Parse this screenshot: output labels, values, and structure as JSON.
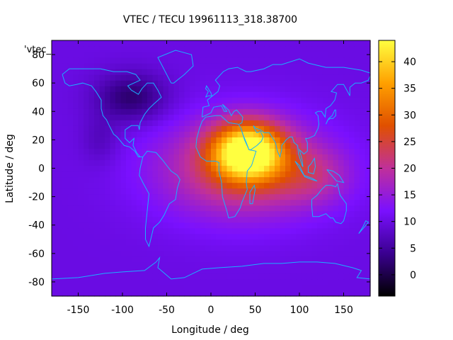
{
  "chart_data": {
    "type": "heatmap",
    "title": "VTEC / TECU 19961113_318.38700",
    "xlabel": "Longitude / deg",
    "ylabel": "Latitude / deg",
    "xlim": [
      -180,
      180
    ],
    "ylim": [
      -90,
      90
    ],
    "x_ticks": [
      -150,
      -100,
      -50,
      0,
      50,
      100,
      150
    ],
    "y_ticks": [
      -80,
      -60,
      -40,
      -20,
      0,
      20,
      40,
      60,
      80
    ],
    "colorbar": {
      "range": [
        -4,
        44
      ],
      "ticks": [
        0,
        5,
        10,
        15,
        20,
        25,
        30,
        35,
        40
      ],
      "palette": [
        "#000000",
        "#3a0090",
        "#7a10ff",
        "#c0309a",
        "#e05000",
        "#ffa000",
        "#ffff40"
      ]
    },
    "legend_key": "'vtec_",
    "background_level": 10,
    "features": [
      {
        "lon": 42,
        "lat": 12,
        "amplitude": 32,
        "sigma_lon": 28,
        "sigma_lat": 14
      },
      {
        "lon": 35,
        "lat": 0,
        "amplitude": 14,
        "sigma_lon": 65,
        "sigma_lat": 24
      },
      {
        "lon": 115,
        "lat": -5,
        "amplitude": 6,
        "sigma_lon": 30,
        "sigma_lat": 14
      },
      {
        "lon": -90,
        "lat": 50,
        "amplitude": -8,
        "sigma_lon": 28,
        "sigma_lat": 12
      },
      {
        "lon": -125,
        "lat": 20,
        "amplitude": -3,
        "sigma_lon": 15,
        "sigma_lat": 12
      }
    ],
    "grid": false
  },
  "colors": {
    "coastline": "#1ab0ff",
    "axis": "#000000"
  }
}
